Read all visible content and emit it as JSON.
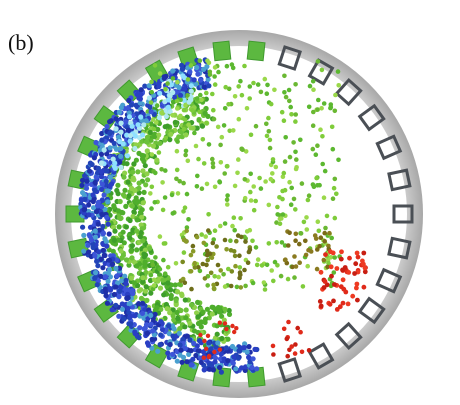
{
  "panel_label": "(b)"
}
